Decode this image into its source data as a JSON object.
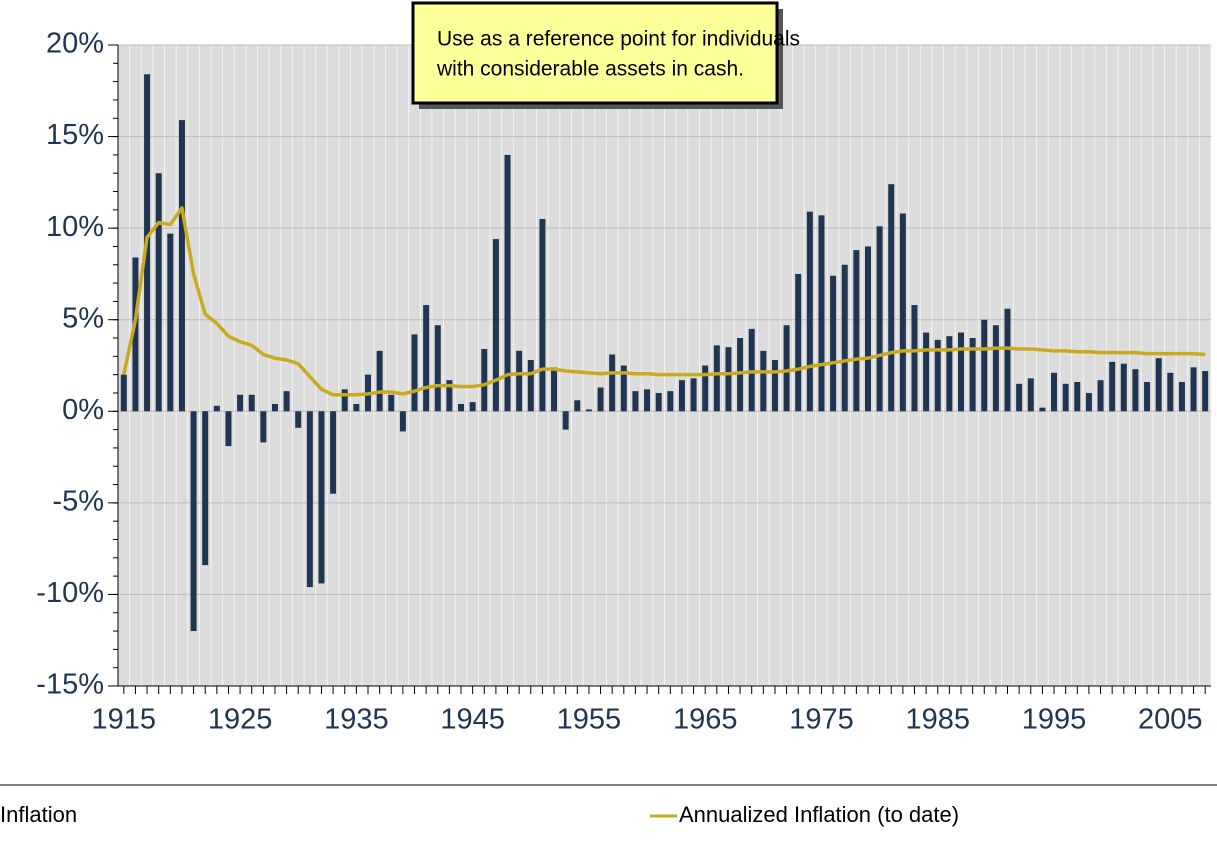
{
  "chart_data": {
    "type": "bar",
    "annotation": [
      "Use as a reference point for individuals",
      "with considerable assets in cash."
    ],
    "x": [
      1915,
      1916,
      1917,
      1918,
      1919,
      1920,
      1921,
      1922,
      1923,
      1924,
      1925,
      1926,
      1927,
      1928,
      1929,
      1930,
      1931,
      1932,
      1933,
      1934,
      1935,
      1936,
      1937,
      1938,
      1939,
      1940,
      1941,
      1942,
      1943,
      1944,
      1945,
      1946,
      1947,
      1948,
      1949,
      1950,
      1951,
      1952,
      1953,
      1954,
      1955,
      1956,
      1957,
      1958,
      1959,
      1960,
      1961,
      1962,
      1963,
      1964,
      1965,
      1966,
      1967,
      1968,
      1969,
      1970,
      1971,
      1972,
      1973,
      1974,
      1975,
      1976,
      1977,
      1978,
      1979,
      1980,
      1981,
      1982,
      1983,
      1984,
      1985,
      1986,
      1987,
      1988,
      1989,
      1990,
      1991,
      1992,
      1993,
      1994,
      1995,
      1996,
      1997,
      1998,
      1999,
      2000,
      2001,
      2002,
      2003,
      2004,
      2005,
      2006,
      2007,
      2008
    ],
    "series": [
      {
        "name": "Inflation",
        "color": "#1f3552",
        "type": "bar",
        "values": [
          2.0,
          8.4,
          18.4,
          13.0,
          9.7,
          15.9,
          -12.0,
          -8.4,
          0.3,
          -1.9,
          0.9,
          0.9,
          -1.7,
          0.4,
          1.1,
          -0.9,
          -9.6,
          -9.4,
          -4.5,
          1.2,
          0.4,
          2.0,
          3.3,
          0.9,
          -1.1,
          4.2,
          5.8,
          4.7,
          1.7,
          0.4,
          0.5,
          3.4,
          9.4,
          14.0,
          3.3,
          2.8,
          10.5,
          2.4,
          -1.0,
          0.6,
          0.1,
          1.3,
          3.1,
          2.5,
          1.1,
          1.2,
          1.0,
          1.1,
          1.7,
          1.8,
          2.5,
          3.6,
          3.5,
          4.0,
          4.5,
          3.3,
          2.8,
          4.7,
          7.5,
          10.9,
          10.7,
          7.4,
          8.0,
          8.8,
          9.0,
          10.1,
          12.4,
          10.8,
          5.8,
          4.3,
          3.9,
          4.1,
          4.3,
          4.0,
          5.0,
          4.7,
          5.6,
          1.5,
          1.8,
          0.2,
          2.1,
          1.5,
          1.6,
          1.0,
          1.7,
          2.7,
          2.6,
          2.3,
          1.6,
          2.9,
          2.1,
          1.6,
          2.4,
          2.2
        ]
      },
      {
        "name": "Annualized Inflation (to date)",
        "color": "#c8a920",
        "type": "line",
        "values": [
          2.0,
          5.0,
          9.5,
          10.3,
          10.2,
          11.1,
          7.5,
          5.3,
          4.8,
          4.1,
          3.8,
          3.6,
          3.1,
          2.9,
          2.8,
          2.6,
          1.9,
          1.2,
          0.9,
          0.9,
          0.9,
          0.95,
          1.05,
          1.05,
          0.95,
          1.1,
          1.3,
          1.4,
          1.4,
          1.35,
          1.35,
          1.45,
          1.7,
          2.0,
          2.05,
          2.05,
          2.3,
          2.3,
          2.2,
          2.15,
          2.1,
          2.05,
          2.1,
          2.1,
          2.05,
          2.05,
          2.0,
          2.0,
          2.0,
          2.0,
          2.0,
          2.05,
          2.05,
          2.1,
          2.15,
          2.15,
          2.15,
          2.2,
          2.3,
          2.45,
          2.55,
          2.65,
          2.75,
          2.85,
          2.9,
          3.05,
          3.2,
          3.3,
          3.3,
          3.35,
          3.35,
          3.35,
          3.4,
          3.4,
          3.4,
          3.45,
          3.45,
          3.4,
          3.4,
          3.35,
          3.3,
          3.3,
          3.25,
          3.25,
          3.2,
          3.2,
          3.2,
          3.2,
          3.15,
          3.15,
          3.15,
          3.15,
          3.15,
          3.1
        ]
      }
    ],
    "xlim": [
      1914.5,
      2008.5
    ],
    "xticks": [
      1915,
      1925,
      1935,
      1945,
      1955,
      1965,
      1975,
      1985,
      1995,
      2005
    ],
    "ylim": [
      -15,
      20
    ],
    "yticks": [
      {
        "value": -15,
        "label": "-15%"
      },
      {
        "value": -10,
        "label": "-10%"
      },
      {
        "value": -5,
        "label": "-5%"
      },
      {
        "value": 0,
        "label": "0%"
      },
      {
        "value": 5,
        "label": "5%"
      },
      {
        "value": 10,
        "label": "10%"
      },
      {
        "value": 15,
        "label": "15%"
      },
      {
        "value": 20,
        "label": "20%"
      }
    ],
    "grid": true,
    "legend": "bottom"
  }
}
